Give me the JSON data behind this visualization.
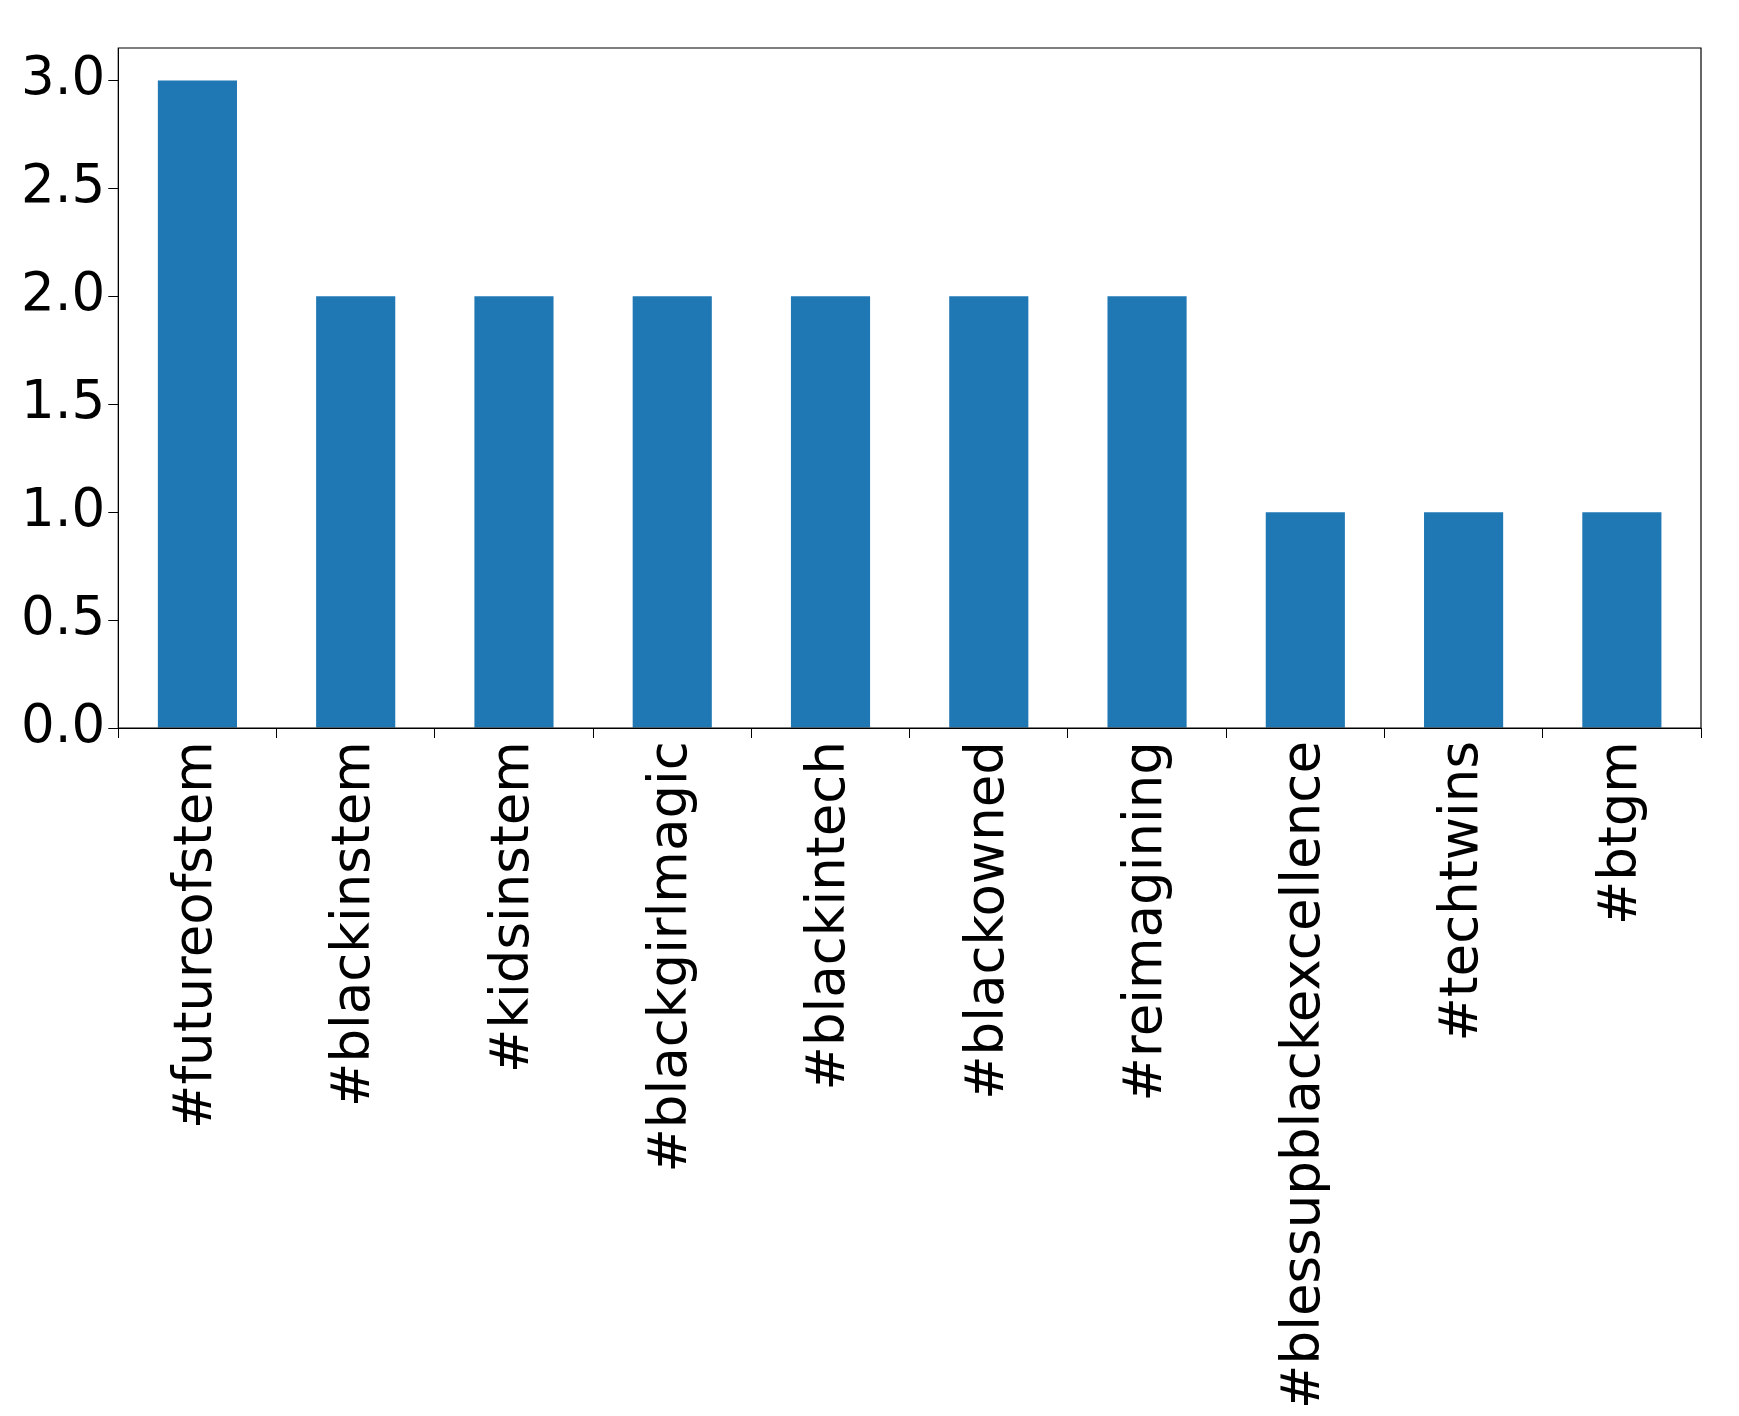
{
  "chart_data": {
    "type": "bar",
    "categories": [
      "#futureofstem",
      "#blackinstem",
      "#kidsinstem",
      "#blackgirlmagic",
      "#blackintech",
      "#blackowned",
      "#reimagining",
      "#blessupblackexcellence",
      "#techtwins",
      "#btgm"
    ],
    "values": [
      3,
      2,
      2,
      2,
      2,
      2,
      2,
      1,
      1,
      1
    ],
    "color": "#1f77b4",
    "ylim": [
      0,
      3.15
    ],
    "yticks": [
      {
        "value": 0,
        "label": "0.0"
      },
      0.5,
      {
        "value": 1,
        "label": "1.0"
      },
      1.5,
      {
        "value": 2,
        "label": "2.0"
      },
      2.5,
      {
        "value": 3,
        "label": "3.0"
      }
    ],
    "grid": false,
    "legend": false
  }
}
